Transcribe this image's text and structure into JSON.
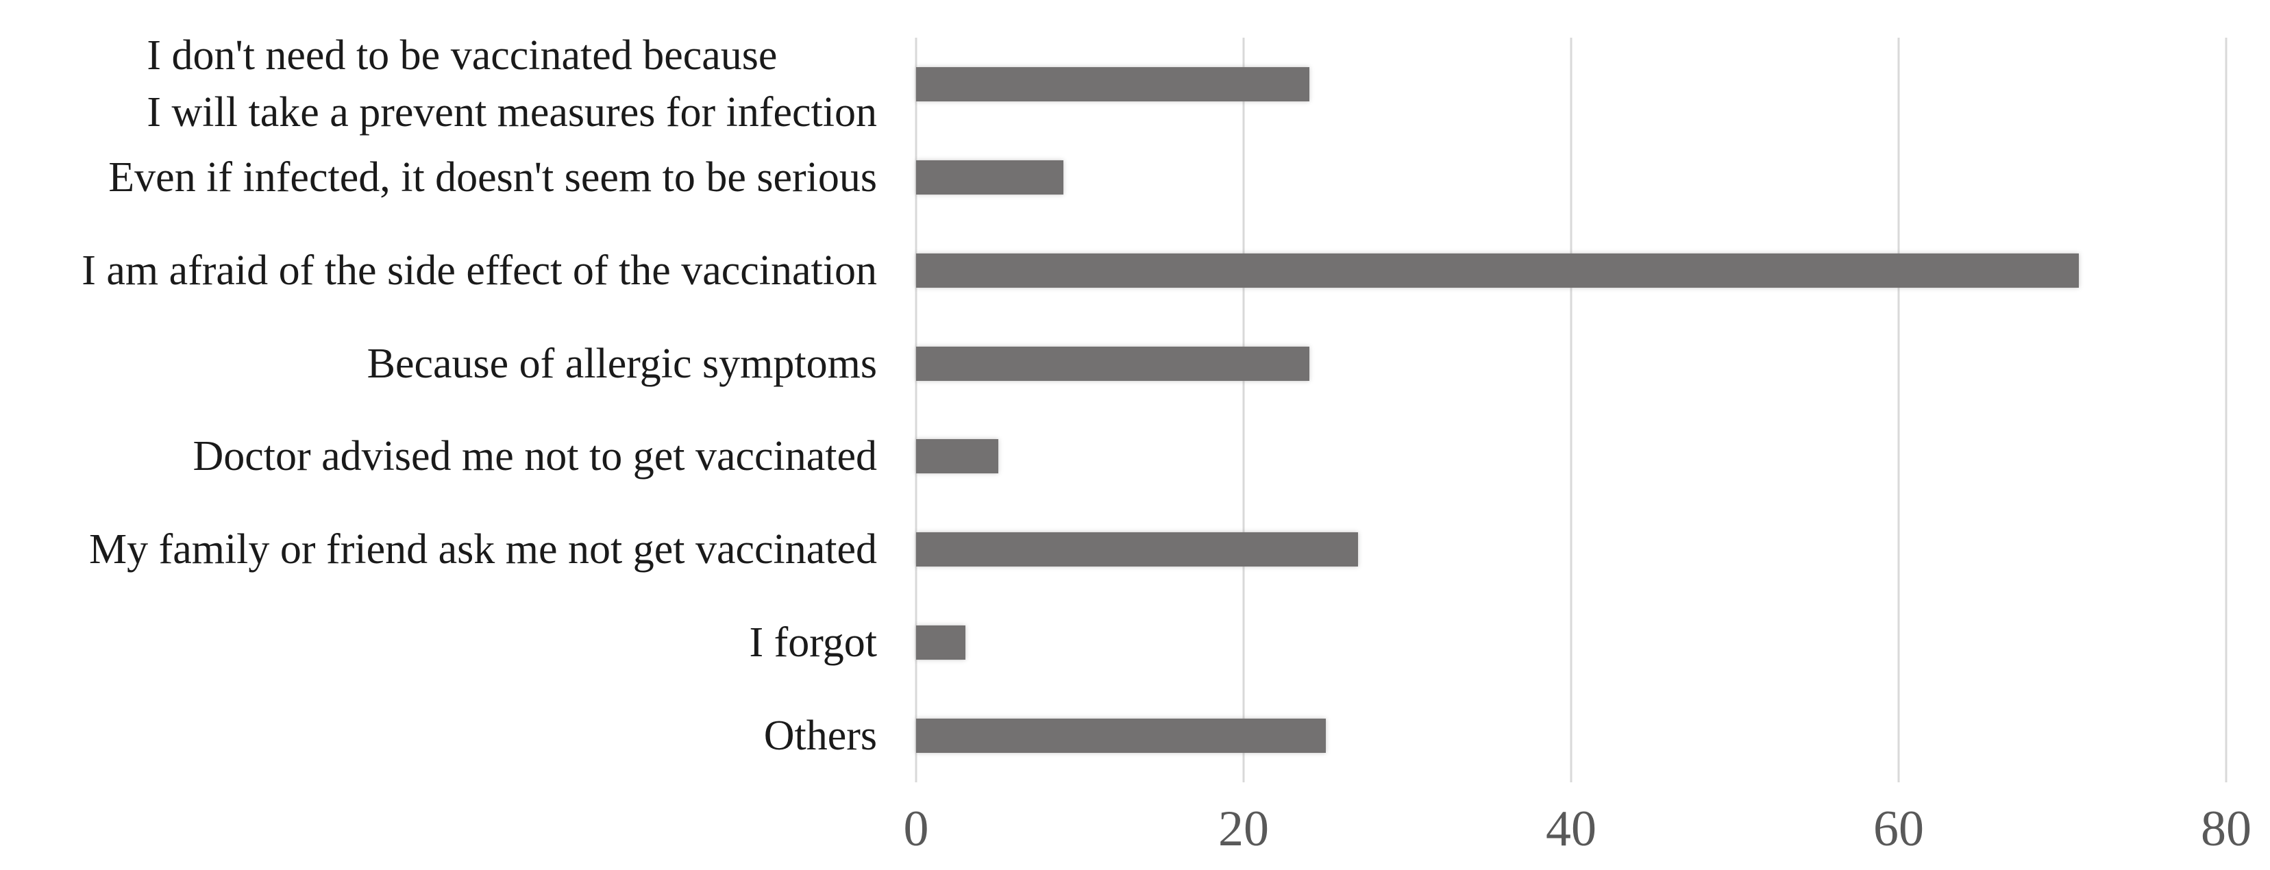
{
  "chart_data": {
    "type": "bar",
    "orientation": "horizontal",
    "title": "",
    "xlabel": "",
    "ylabel": "",
    "categories": [
      "I don't need to be vaccinated because\nI will take a  prevent measures for infection",
      "Even if infected, it doesn't seem to be serious",
      "I am afraid of the side effect of the vaccination",
      "Because of allergic symptoms",
      "Doctor advised me not to get vaccinated",
      "My family or friend ask me not get vaccinated",
      "I forgot",
      "Others"
    ],
    "values": [
      24,
      9,
      71,
      24,
      5,
      27,
      3,
      25
    ],
    "x_ticks": [
      0,
      20,
      40,
      60,
      80
    ],
    "xlim": [
      0,
      80
    ],
    "grid": "vertical-gridlines-on",
    "legend": "none",
    "bar_color": "#737171",
    "gridline_color": "#d9d9d9",
    "tick_label_color": "#595959",
    "category_label_color": "#1a1a1a"
  }
}
